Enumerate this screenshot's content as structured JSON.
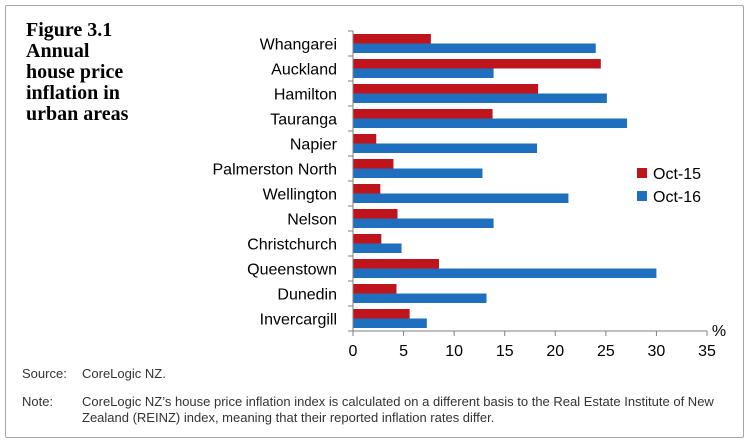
{
  "figure": {
    "title": "Figure 3.1\nAnnual\nhouse price\ninflation in\nurban areas"
  },
  "chart_data": {
    "type": "bar",
    "orientation": "horizontal",
    "categories": [
      "Whangarei",
      "Auckland",
      "Hamilton",
      "Tauranga",
      "Napier",
      "Palmerston North",
      "Wellington",
      "Nelson",
      "Christchurch",
      "Queenstown",
      "Dunedin",
      "Invercargill"
    ],
    "series": [
      {
        "name": "Oct-15",
        "color": "#c0141c",
        "values": [
          7.7,
          24.5,
          18.3,
          13.8,
          2.3,
          4.0,
          2.7,
          4.4,
          2.8,
          8.5,
          4.3,
          5.6
        ]
      },
      {
        "name": "Oct-16",
        "color": "#1f6fbf",
        "values": [
          24.0,
          13.9,
          25.1,
          27.1,
          18.2,
          12.8,
          21.3,
          13.9,
          4.8,
          30.0,
          13.2,
          7.3
        ]
      }
    ],
    "xlim": [
      0,
      35
    ],
    "xticks": [
      0,
      5,
      10,
      15,
      20,
      25,
      30,
      35
    ],
    "xunit": "%",
    "legend_position": "right"
  },
  "notes": {
    "source_label": "Source:",
    "source_text": "CoreLogic NZ.",
    "note_label": "Note:",
    "note_text": "CoreLogic NZ’s house price inflation index is calculated on a different basis to the Real Estate Institute of New Zealand (REINZ) index, meaning that their reported inflation rates differ."
  }
}
